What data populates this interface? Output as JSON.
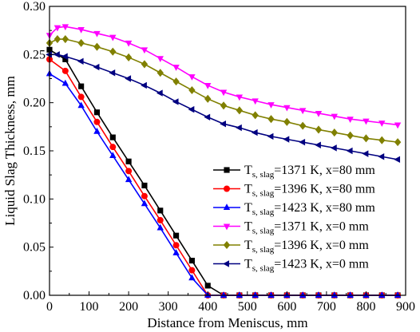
{
  "chart_data": {
    "type": "line",
    "xlabel": "Distance from Meniscus, mm",
    "ylabel": "Liquid Slag Thickness, mm",
    "xlim": [
      0,
      900
    ],
    "ylim": [
      0,
      0.3
    ],
    "xticks": [
      0,
      100,
      200,
      300,
      400,
      500,
      600,
      700,
      800,
      900
    ],
    "yticks": [
      0.0,
      0.05,
      0.1,
      0.15,
      0.2,
      0.25,
      0.3
    ],
    "xtick_labels": [
      "0",
      "100",
      "200",
      "300",
      "400",
      "500",
      "600",
      "700",
      "800",
      "900"
    ],
    "ytick_labels": [
      "0.00",
      "0.05",
      "0.10",
      "0.15",
      "0.20",
      "0.25",
      "0.30"
    ],
    "grid": false,
    "legend_position": "center-right",
    "series": [
      {
        "name": "T",
        "name_sub": "s, slag",
        "name_rest": "=1371 K, x=80 mm",
        "color": "#000000",
        "marker": "square",
        "x": [
          0,
          40,
          80,
          120,
          160,
          200,
          240,
          280,
          320,
          360,
          400,
          440,
          480,
          520,
          560,
          600,
          640,
          680,
          720,
          760,
          800,
          840,
          880
        ],
        "y": [
          0.255,
          0.245,
          0.217,
          0.19,
          0.164,
          0.139,
          0.114,
          0.088,
          0.062,
          0.036,
          0.01,
          0.0,
          0.0,
          0.0,
          0.0,
          0.0,
          0.0,
          0.0,
          0.0,
          0.0,
          0.0,
          0.0,
          0.0
        ]
      },
      {
        "name": "T",
        "name_sub": "s, slag",
        "name_rest": "=1396 K, x=80 mm",
        "color": "#ff0000",
        "marker": "circle",
        "x": [
          0,
          40,
          80,
          120,
          160,
          200,
          240,
          280,
          320,
          360,
          400,
          440,
          480,
          520,
          560,
          600,
          640,
          680,
          720,
          760,
          800,
          840,
          880
        ],
        "y": [
          0.245,
          0.233,
          0.206,
          0.18,
          0.154,
          0.129,
          0.103,
          0.078,
          0.052,
          0.026,
          0.0,
          0.0,
          0.0,
          0.0,
          0.0,
          0.0,
          0.0,
          0.0,
          0.0,
          0.0,
          0.0,
          0.0,
          0.0
        ]
      },
      {
        "name": "T",
        "name_sub": "s, slag",
        "name_rest": "=1423 K, x=80 mm",
        "color": "#0000ff",
        "marker": "triangle-up",
        "x": [
          0,
          40,
          80,
          120,
          160,
          200,
          240,
          280,
          320,
          360,
          400,
          440,
          480,
          520,
          560,
          600,
          640,
          680,
          720,
          760,
          800,
          840,
          880
        ],
        "y": [
          0.23,
          0.22,
          0.197,
          0.17,
          0.145,
          0.12,
          0.095,
          0.07,
          0.044,
          0.018,
          0.0,
          0.0,
          0.0,
          0.0,
          0.0,
          0.0,
          0.0,
          0.0,
          0.0,
          0.0,
          0.0,
          0.0,
          0.0
        ]
      },
      {
        "name": "T",
        "name_sub": "s, slag",
        "name_rest": "=1371 K, x=0 mm",
        "color": "#ff00ff",
        "marker": "triangle-down",
        "x": [
          0,
          20,
          40,
          80,
          120,
          160,
          200,
          240,
          280,
          320,
          360,
          400,
          440,
          480,
          520,
          560,
          600,
          640,
          680,
          720,
          760,
          800,
          840,
          880
        ],
        "y": [
          0.27,
          0.278,
          0.279,
          0.276,
          0.272,
          0.268,
          0.262,
          0.255,
          0.246,
          0.237,
          0.227,
          0.218,
          0.211,
          0.206,
          0.202,
          0.198,
          0.195,
          0.192,
          0.189,
          0.186,
          0.183,
          0.181,
          0.179,
          0.177
        ]
      },
      {
        "name": "T",
        "name_sub": "s, slag",
        "name_rest": "=1396 K, x=0 mm",
        "color": "#808000",
        "marker": "diamond",
        "x": [
          0,
          20,
          40,
          80,
          120,
          160,
          200,
          240,
          280,
          320,
          360,
          400,
          440,
          480,
          520,
          560,
          600,
          640,
          680,
          720,
          760,
          800,
          840,
          880
        ],
        "y": [
          0.262,
          0.266,
          0.266,
          0.262,
          0.258,
          0.253,
          0.247,
          0.24,
          0.231,
          0.222,
          0.213,
          0.204,
          0.197,
          0.192,
          0.187,
          0.183,
          0.18,
          0.176,
          0.172,
          0.169,
          0.166,
          0.163,
          0.161,
          0.159
        ]
      },
      {
        "name": "T",
        "name_sub": "s, slag",
        "name_rest": "=1423 K, x=0 mm",
        "color": "#000080",
        "marker": "triangle-left",
        "x": [
          0,
          20,
          40,
          80,
          120,
          160,
          200,
          240,
          280,
          320,
          360,
          400,
          440,
          480,
          520,
          560,
          600,
          640,
          680,
          720,
          760,
          800,
          840,
          880
        ],
        "y": [
          0.25,
          0.25,
          0.248,
          0.243,
          0.237,
          0.231,
          0.225,
          0.218,
          0.21,
          0.201,
          0.193,
          0.185,
          0.178,
          0.174,
          0.169,
          0.165,
          0.162,
          0.159,
          0.156,
          0.153,
          0.15,
          0.147,
          0.144,
          0.141
        ]
      }
    ]
  }
}
